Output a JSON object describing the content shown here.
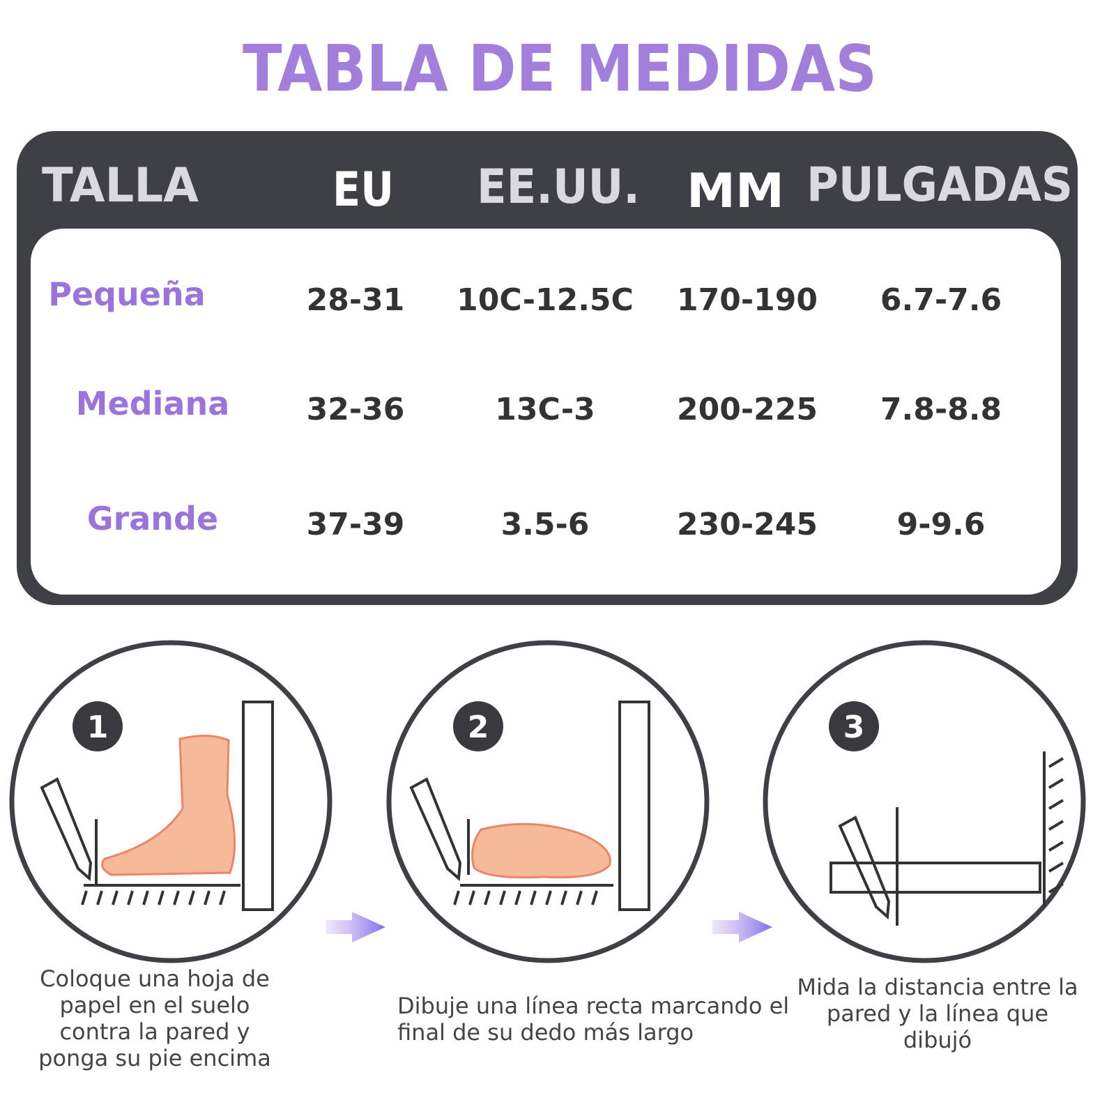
{
  "header": {
    "title": "TABLA DE MEDIDAS"
  },
  "table": {
    "headers": [
      "TALLA",
      "EU",
      "EE.UU.",
      "MM",
      "PULGADAS"
    ],
    "rows": [
      [
        "Pequeña",
        "28-31",
        "10C-12.5C",
        "170-190",
        "6.7-7.6"
      ],
      [
        "Mediana",
        "32-36",
        "13C-3",
        "200-225",
        "7.8-8.8"
      ],
      [
        "Grande",
        "37-39",
        "3.5-6",
        "230-245",
        "9-9.6"
      ]
    ]
  },
  "steps": [
    {
      "number": "1",
      "lines": [
        "Coloque una hoja de",
        "papel en el suelo",
        "contra la pared y",
        "ponga su pie encima"
      ]
    },
    {
      "number": "2",
      "lines": [
        "Dibuje una línea recta marcando el",
        "final de su dedo más largo"
      ]
    },
    {
      "number": "3",
      "lines": [
        "Mida la distancia entre la",
        "pared y la línea que",
        "dibujó"
      ]
    }
  ]
}
